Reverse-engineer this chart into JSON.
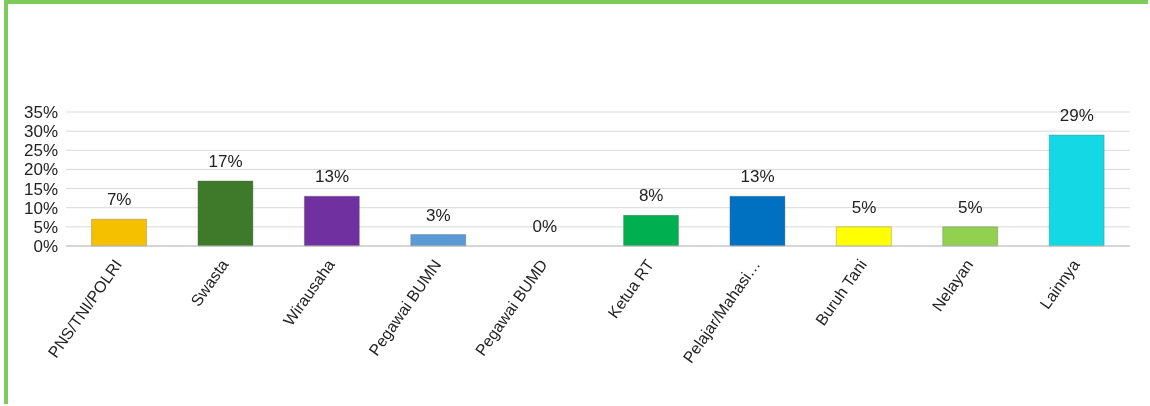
{
  "chart_data": {
    "type": "bar",
    "categories": [
      "PNS/TNI/POLRI",
      "Swasta",
      "Wirausaha",
      "Pegawai BUMN",
      "Pegawai BUMD",
      "Ketua RT",
      "Pelajar/Mahasi…",
      "Buruh Tani",
      "Nelayan",
      "Lainnya"
    ],
    "values": [
      7,
      17,
      13,
      3,
      0,
      8,
      13,
      5,
      5,
      29
    ],
    "colors": [
      "#f5c000",
      "#3e7a2a",
      "#7030a0",
      "#5b9bd5",
      "#a5a5a5",
      "#00b050",
      "#0070c0",
      "#ffff00",
      "#92d050",
      "#14d8e4"
    ],
    "value_labels": [
      "7%",
      "17%",
      "13%",
      "3%",
      "0%",
      "8%",
      "13%",
      "5%",
      "5%",
      "29%"
    ],
    "ylim": [
      0,
      35
    ],
    "yticks": [
      {
        "value": 0,
        "label": "0%"
      },
      {
        "value": 5,
        "label": "5%"
      },
      {
        "value": 10,
        "label": "10%"
      },
      {
        "value": 15,
        "label": "15%"
      },
      {
        "value": 20,
        "label": "20%"
      },
      {
        "value": 25,
        "label": "25%"
      },
      {
        "value": 30,
        "label": "30%"
      },
      {
        "value": 35,
        "label": "35%"
      }
    ],
    "grid": "y"
  }
}
